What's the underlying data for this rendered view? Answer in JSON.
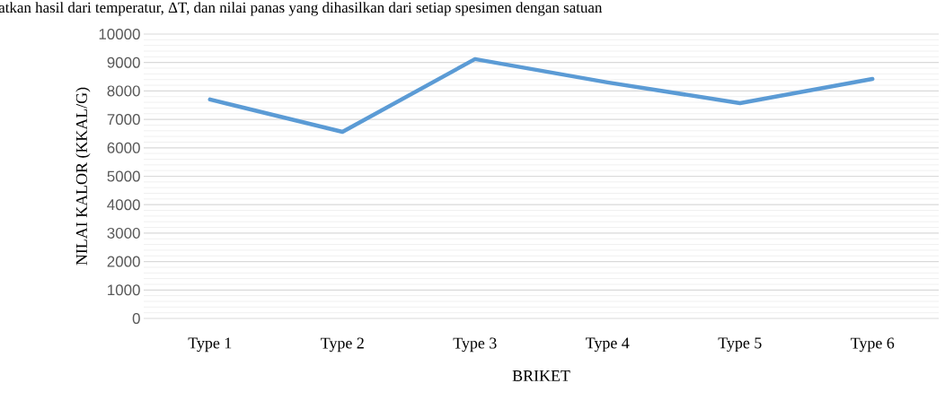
{
  "chart_data": {
    "type": "line",
    "xlabel": "BRIKET",
    "ylabel": "NILAI KALOR (KKAL/G)",
    "annotations": [
      "atkan hasil dari temperatur, ΔT, dan nilai panas yang dihasilkan dari setiap spesimen dengan satuan"
    ],
    "categories": [
      "Type 1",
      "Type 2",
      "Type 3",
      "Type 4",
      "Type 5",
      "Type 6"
    ],
    "series": [
      {
        "color": "#5b9bd5",
        "values": [
          7700,
          6560,
          9120,
          8300,
          7570,
          8420
        ]
      }
    ],
    "ylim": [
      0,
      10000
    ],
    "yticks": [
      0,
      1000,
      2000,
      3000,
      4000,
      5000,
      6000,
      7000,
      8000,
      9000,
      10000
    ],
    "grid": "y",
    "legend": false,
    "marker": "none",
    "line_style": "solid"
  }
}
